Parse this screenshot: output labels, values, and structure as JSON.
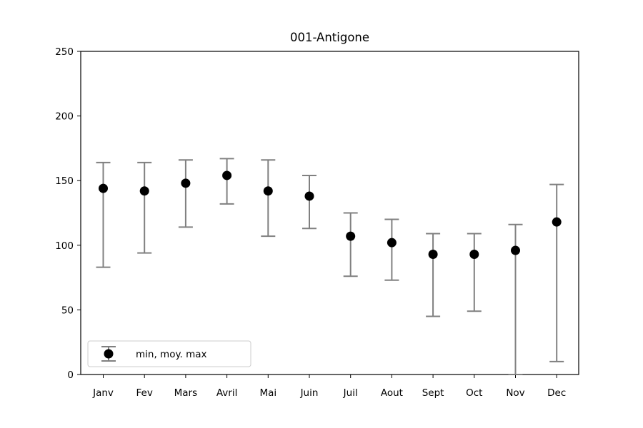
{
  "chart_data": {
    "type": "scatter",
    "title": "001-Antigone",
    "xlabel": "",
    "ylabel": "",
    "categories": [
      "Janv",
      "Fev",
      "Mars",
      "Avril",
      "Mai",
      "Juin",
      "Juil",
      "Aout",
      "Sept",
      "Oct",
      "Nov",
      "Dec"
    ],
    "ylim": [
      0,
      250
    ],
    "yticks": [
      "0",
      "50",
      "100",
      "150",
      "200",
      "250"
    ],
    "grid": false,
    "legend_position": "lower-left",
    "series": [
      {
        "name": "min, moy. max",
        "mean": [
          144,
          142,
          148,
          154,
          142,
          138,
          107,
          102,
          93,
          93,
          96,
          118
        ],
        "min": [
          83,
          94,
          114,
          132,
          107,
          113,
          76,
          73,
          45,
          49,
          0,
          10
        ],
        "max": [
          164,
          164,
          166,
          167,
          166,
          154,
          125,
          120,
          109,
          109,
          116,
          147
        ]
      }
    ],
    "colors": {
      "marker": "#000000",
      "errorbar": "#808080",
      "axis": "#000000"
    }
  }
}
